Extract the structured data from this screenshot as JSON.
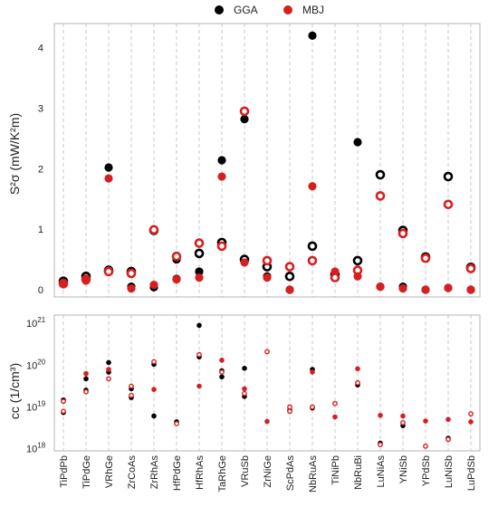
{
  "legend": [
    {
      "label": "GGA",
      "color": "#000000"
    },
    {
      "label": "MBJ",
      "color": "#d81f1f"
    }
  ],
  "chart_data": [
    {
      "type": "scatter",
      "ylabel": "S²σ (mW/K²m)",
      "xlabel": "",
      "ylim": [
        -0.12,
        4.4
      ],
      "ytick_labels": [
        "0",
        "1",
        "2",
        "3",
        "4"
      ],
      "ytick_values": [
        0,
        1,
        2,
        3,
        4
      ],
      "grid": "vertical dashed",
      "legend_position": "top-center",
      "categories": [
        "TiPdPb",
        "TiPdGe",
        "VRhGe",
        "ZrCoAs",
        "ZrRhAs",
        "HfPdGe",
        "HfRhAs",
        "TaRhGe",
        "VRuSb",
        "ZrNiGe",
        "ScPdAs",
        "NbRuAs",
        "TiNiPb",
        "NbRuBi",
        "LuNiAs",
        "YNiSb",
        "YPdSb",
        "LuNiSb",
        "LuPdSb"
      ],
      "series": [
        {
          "name": "GGA",
          "color": "#000000",
          "points": [
            {
              "x": "TiPdPb",
              "y": 0.14,
              "marker": "ring"
            },
            {
              "x": "TiPdPb",
              "y": 0.12,
              "marker": "dot"
            },
            {
              "x": "TiPdGe",
              "y": 0.22,
              "marker": "ring"
            },
            {
              "x": "TiPdGe",
              "y": 0.18,
              "marker": "dot"
            },
            {
              "x": "VRhGe",
              "y": 2.02,
              "marker": "dot"
            },
            {
              "x": "VRhGe",
              "y": 0.32,
              "marker": "ring"
            },
            {
              "x": "ZrCoAs",
              "y": 0.3,
              "marker": "ring"
            },
            {
              "x": "ZrCoAs",
              "y": 0.05,
              "marker": "dot"
            },
            {
              "x": "ZrRhAs",
              "y": 0.98,
              "marker": "ring"
            },
            {
              "x": "ZrRhAs",
              "y": 0.04,
              "marker": "dot"
            },
            {
              "x": "HfPdGe",
              "y": 0.5,
              "marker": "dot"
            },
            {
              "x": "HfPdGe",
              "y": 0.18,
              "marker": "dot"
            },
            {
              "x": "HfRhAs",
              "y": 0.6,
              "marker": "ring"
            },
            {
              "x": "HfRhAs",
              "y": 0.3,
              "marker": "dot"
            },
            {
              "x": "TaRhGe",
              "y": 2.14,
              "marker": "dot"
            },
            {
              "x": "TaRhGe",
              "y": 0.78,
              "marker": "ring"
            },
            {
              "x": "VRuSb",
              "y": 2.82,
              "marker": "dot"
            },
            {
              "x": "VRuSb",
              "y": 0.5,
              "marker": "ring"
            },
            {
              "x": "ZrNiGe",
              "y": 0.38,
              "marker": "ring"
            },
            {
              "x": "ZrNiGe",
              "y": 0.22,
              "marker": "dot"
            },
            {
              "x": "ScPdAs",
              "y": 0.22,
              "marker": "ring"
            },
            {
              "x": "ScPdAs",
              "y": 0.0,
              "marker": "dot"
            },
            {
              "x": "NbRuAs",
              "y": 4.2,
              "marker": "dot"
            },
            {
              "x": "NbRuAs",
              "y": 0.72,
              "marker": "ring"
            },
            {
              "x": "TiNiPb",
              "y": 0.25,
              "marker": "ring"
            },
            {
              "x": "TiNiPb",
              "y": 0.22,
              "marker": "dot"
            },
            {
              "x": "NbRuBi",
              "y": 2.44,
              "marker": "dot"
            },
            {
              "x": "NbRuBi",
              "y": 0.48,
              "marker": "ring"
            },
            {
              "x": "LuNiAs",
              "y": 1.9,
              "marker": "ring"
            },
            {
              "x": "LuNiAs",
              "y": 0.05,
              "marker": "dot"
            },
            {
              "x": "YNiSb",
              "y": 0.98,
              "marker": "ring"
            },
            {
              "x": "YNiSb",
              "y": 0.05,
              "marker": "dot"
            },
            {
              "x": "YPdSb",
              "y": 0.54,
              "marker": "ring"
            },
            {
              "x": "YPdSb",
              "y": 0.0,
              "marker": "dot"
            },
            {
              "x": "LuNiSb",
              "y": 1.87,
              "marker": "ring"
            },
            {
              "x": "LuNiSb",
              "y": 0.03,
              "marker": "dot"
            },
            {
              "x": "LuPdSb",
              "y": 0.37,
              "marker": "ring"
            },
            {
              "x": "LuPdSb",
              "y": 0.0,
              "marker": "dot"
            }
          ]
        },
        {
          "name": "MBJ",
          "color": "#d81f1f",
          "points": [
            {
              "x": "TiPdPb",
              "y": 0.1,
              "marker": "ring"
            },
            {
              "x": "TiPdPb",
              "y": 0.09,
              "marker": "dot"
            },
            {
              "x": "TiPdGe",
              "y": 0.17,
              "marker": "ring"
            },
            {
              "x": "TiPdGe",
              "y": 0.15,
              "marker": "dot"
            },
            {
              "x": "VRhGe",
              "y": 1.84,
              "marker": "dot"
            },
            {
              "x": "VRhGe",
              "y": 0.3,
              "marker": "ring"
            },
            {
              "x": "ZrCoAs",
              "y": 0.27,
              "marker": "ring"
            },
            {
              "x": "ZrCoAs",
              "y": 0.02,
              "marker": "dot"
            },
            {
              "x": "ZrRhAs",
              "y": 0.99,
              "marker": "ring"
            },
            {
              "x": "ZrRhAs",
              "y": 0.08,
              "marker": "dot"
            },
            {
              "x": "HfPdGe",
              "y": 0.55,
              "marker": "ring"
            },
            {
              "x": "HfPdGe",
              "y": 0.17,
              "marker": "dot"
            },
            {
              "x": "HfRhAs",
              "y": 0.77,
              "marker": "ring"
            },
            {
              "x": "HfRhAs",
              "y": 0.2,
              "marker": "dot"
            },
            {
              "x": "TaRhGe",
              "y": 1.87,
              "marker": "dot"
            },
            {
              "x": "TaRhGe",
              "y": 0.72,
              "marker": "ring"
            },
            {
              "x": "VRuSb",
              "y": 2.95,
              "marker": "ring"
            },
            {
              "x": "VRuSb",
              "y": 0.45,
              "marker": "dot"
            },
            {
              "x": "ZrNiGe",
              "y": 0.48,
              "marker": "ring"
            },
            {
              "x": "ZrNiGe",
              "y": 0.2,
              "marker": "dot"
            },
            {
              "x": "ScPdAs",
              "y": 0.38,
              "marker": "ring"
            },
            {
              "x": "ScPdAs",
              "y": 0.0,
              "marker": "dot"
            },
            {
              "x": "NbRuAs",
              "y": 1.71,
              "marker": "dot"
            },
            {
              "x": "NbRuAs",
              "y": 0.48,
              "marker": "ring"
            },
            {
              "x": "TiNiPb",
              "y": 0.3,
              "marker": "dot"
            },
            {
              "x": "TiNiPb",
              "y": 0.2,
              "marker": "ring"
            },
            {
              "x": "NbRuBi",
              "y": 0.32,
              "marker": "ring"
            },
            {
              "x": "NbRuBi",
              "y": 0.22,
              "marker": "dot"
            },
            {
              "x": "LuNiAs",
              "y": 1.55,
              "marker": "ring"
            },
            {
              "x": "LuNiAs",
              "y": 0.05,
              "marker": "dot"
            },
            {
              "x": "YNiSb",
              "y": 0.93,
              "marker": "ring"
            },
            {
              "x": "YNiSb",
              "y": 0.02,
              "marker": "dot"
            },
            {
              "x": "YPdSb",
              "y": 0.52,
              "marker": "ring"
            },
            {
              "x": "YPdSb",
              "y": 0.0,
              "marker": "dot"
            },
            {
              "x": "LuNiSb",
              "y": 1.41,
              "marker": "ring"
            },
            {
              "x": "LuNiSb",
              "y": 0.03,
              "marker": "dot"
            },
            {
              "x": "LuPdSb",
              "y": 0.35,
              "marker": "ring"
            },
            {
              "x": "LuPdSb",
              "y": 0.0,
              "marker": "dot"
            }
          ]
        }
      ]
    },
    {
      "type": "scatter",
      "ylabel": "cc (1/cm³)",
      "xlabel": "",
      "yscale": "log",
      "ylim": [
        8.5e+17,
        1.5e+21
      ],
      "ytick_labels": [
        {
          "base": "10",
          "exp": "18",
          "value": 1e+18
        },
        {
          "base": "10",
          "exp": "19",
          "value": 1e+19
        },
        {
          "base": "10",
          "exp": "20",
          "value": 1e+20
        },
        {
          "base": "10",
          "exp": "21",
          "value": 1e+21
        }
      ],
      "grid": "vertical dashed",
      "categories": [
        "TiPdPb",
        "TiPdGe",
        "VRhGe",
        "ZrCoAs",
        "ZrRhAs",
        "HfPdGe",
        "HfRhAs",
        "TaRhGe",
        "VRuSb",
        "ZrNiGe",
        "ScPdAs",
        "NbRuAs",
        "TiNiPb",
        "NbRuBi",
        "LuNiAs",
        "YNiSb",
        "YPdSb",
        "LuNiSb",
        "LuPdSb"
      ],
      "series": [
        {
          "name": "GGA",
          "color": "#000000",
          "points": [
            {
              "x": "TiPdPb",
              "y": 1.4e+19,
              "marker": "dot"
            },
            {
              "x": "TiPdPb",
              "y": 7e+18,
              "marker": "dot"
            },
            {
              "x": "TiPdGe",
              "y": 4.5e+19,
              "marker": "dot"
            },
            {
              "x": "TiPdGe",
              "y": 2.4e+19,
              "marker": "dot"
            },
            {
              "x": "VRhGe",
              "y": 1.1e+20,
              "marker": "dot"
            },
            {
              "x": "VRhGe",
              "y": 6.5e+19,
              "marker": "dot"
            },
            {
              "x": "ZrCoAs",
              "y": 2.6e+19,
              "marker": "dot"
            },
            {
              "x": "ZrCoAs",
              "y": 1.6e+19,
              "marker": "dot"
            },
            {
              "x": "ZrRhAs",
              "y": 1e+20,
              "marker": "dot"
            },
            {
              "x": "ZrRhAs",
              "y": 5.8e+18,
              "marker": "dot"
            },
            {
              "x": "HfPdGe",
              "y": 4.2e+18,
              "marker": "dot"
            },
            {
              "x": "HfRhAs",
              "y": 8.5e+20,
              "marker": "dot"
            },
            {
              "x": "HfRhAs",
              "y": 1.5e+20,
              "marker": "dot"
            },
            {
              "x": "TaRhGe",
              "y": 7e+19,
              "marker": "dot"
            },
            {
              "x": "TaRhGe",
              "y": 5e+19,
              "marker": "dot"
            },
            {
              "x": "VRuSb",
              "y": 8e+19,
              "marker": "dot"
            },
            {
              "x": "VRuSb",
              "y": 1.7e+19,
              "marker": "dot"
            },
            {
              "x": "ScPdAs",
              "y": 8e+18,
              "marker": "dot"
            },
            {
              "x": "NbRuAs",
              "y": 7.5e+19,
              "marker": "dot"
            },
            {
              "x": "NbRuAs",
              "y": 9e+18,
              "marker": "dot"
            },
            {
              "x": "NbRuBi",
              "y": 3.2e+19,
              "marker": "dot"
            },
            {
              "x": "LuNiAs",
              "y": 1.3e+18,
              "marker": "dot"
            },
            {
              "x": "YNiSb",
              "y": 3.4e+18,
              "marker": "dot"
            },
            {
              "x": "LuNiSb",
              "y": 1.7e+18,
              "marker": "dot"
            }
          ]
        },
        {
          "name": "MBJ",
          "color": "#d81f1f",
          "points": [
            {
              "x": "TiPdPb",
              "y": 1.3e+19,
              "marker": "ring"
            },
            {
              "x": "TiPdPb",
              "y": 7.5e+18,
              "marker": "ring"
            },
            {
              "x": "TiPdGe",
              "y": 6e+19,
              "marker": "dot"
            },
            {
              "x": "TiPdGe",
              "y": 2.2e+19,
              "marker": "ring"
            },
            {
              "x": "VRhGe",
              "y": 7.5e+19,
              "marker": "dot"
            },
            {
              "x": "VRhGe",
              "y": 4.5e+19,
              "marker": "ring"
            },
            {
              "x": "ZrCoAs",
              "y": 3e+19,
              "marker": "ring"
            },
            {
              "x": "ZrCoAs",
              "y": 1.8e+19,
              "marker": "ring"
            },
            {
              "x": "ZrRhAs",
              "y": 1.15e+20,
              "marker": "ring"
            },
            {
              "x": "ZrRhAs",
              "y": 2.5e+19,
              "marker": "dot"
            },
            {
              "x": "HfPdGe",
              "y": 3.8e+18,
              "marker": "ring"
            },
            {
              "x": "HfRhAs",
              "y": 1.7e+20,
              "marker": "ring"
            },
            {
              "x": "HfRhAs",
              "y": 3e+19,
              "marker": "dot"
            },
            {
              "x": "TaRhGe",
              "y": 1.25e+20,
              "marker": "dot"
            },
            {
              "x": "TaRhGe",
              "y": 6.5e+19,
              "marker": "ring"
            },
            {
              "x": "VRuSb",
              "y": 2.6e+19,
              "marker": "dot"
            },
            {
              "x": "VRuSb",
              "y": 2e+19,
              "marker": "ring"
            },
            {
              "x": "ZrNiGe",
              "y": 2e+20,
              "marker": "ring"
            },
            {
              "x": "ZrNiGe",
              "y": 4.3e+18,
              "marker": "dot"
            },
            {
              "x": "ScPdAs",
              "y": 9.5e+18,
              "marker": "ring"
            },
            {
              "x": "ScPdAs",
              "y": 7.5e+18,
              "marker": "ring"
            },
            {
              "x": "NbRuAs",
              "y": 6.5e+19,
              "marker": "dot"
            },
            {
              "x": "NbRuAs",
              "y": 9.5e+18,
              "marker": "ring"
            },
            {
              "x": "TiNiPb",
              "y": 1.15e+19,
              "marker": "ring"
            },
            {
              "x": "TiNiPb",
              "y": 5.5e+18,
              "marker": "dot"
            },
            {
              "x": "NbRuBi",
              "y": 7.8e+19,
              "marker": "dot"
            },
            {
              "x": "NbRuBi",
              "y": 3.6e+19,
              "marker": "ring"
            },
            {
              "x": "LuNiAs",
              "y": 6e+18,
              "marker": "dot"
            },
            {
              "x": "LuNiAs",
              "y": 1.2e+18,
              "marker": "ring"
            },
            {
              "x": "YNiSb",
              "y": 5.8e+18,
              "marker": "dot"
            },
            {
              "x": "YNiSb",
              "y": 4e+18,
              "marker": "ring"
            },
            {
              "x": "YPdSb",
              "y": 4.4e+18,
              "marker": "dot"
            },
            {
              "x": "YPdSb",
              "y": 1.1e+18,
              "marker": "ring"
            },
            {
              "x": "LuNiSb",
              "y": 4.8e+18,
              "marker": "dot"
            },
            {
              "x": "LuNiSb",
              "y": 1.6e+18,
              "marker": "ring"
            },
            {
              "x": "LuPdSb",
              "y": 6.5e+18,
              "marker": "ring"
            },
            {
              "x": "LuPdSb",
              "y": 4.2e+18,
              "marker": "dot"
            }
          ]
        }
      ]
    }
  ]
}
